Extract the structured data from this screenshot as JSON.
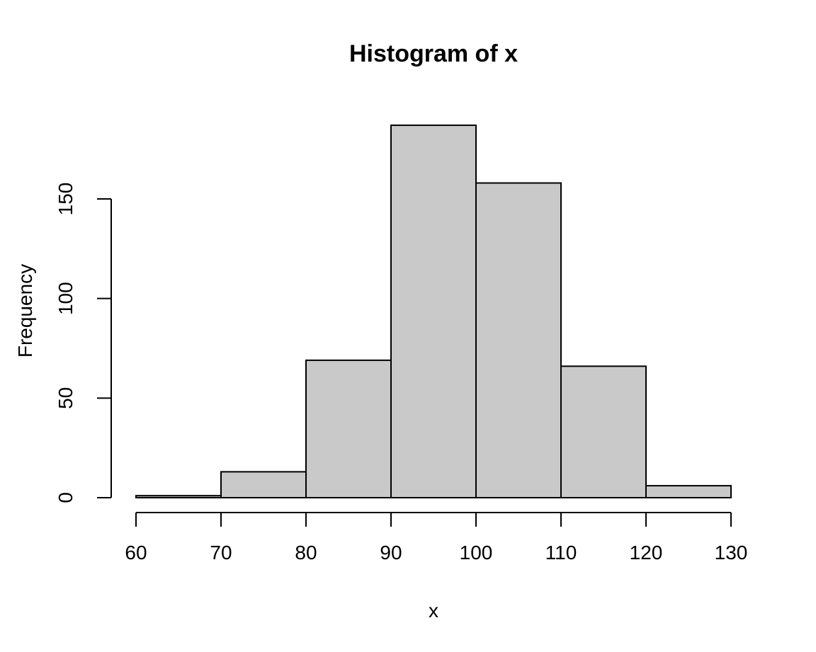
{
  "chart_data": {
    "type": "bar",
    "subtype": "histogram",
    "title": "Histogram of x",
    "xlabel": "x",
    "ylabel": "Frequency",
    "bin_edges": [
      60,
      70,
      80,
      90,
      100,
      110,
      120,
      130
    ],
    "counts": [
      1,
      13,
      69,
      187,
      158,
      66,
      6
    ],
    "x_ticks": [
      60,
      70,
      80,
      90,
      100,
      110,
      120,
      130
    ],
    "y_ticks": [
      0,
      50,
      100,
      150
    ],
    "xlim": [
      60,
      130
    ],
    "ylim": [
      0,
      187
    ],
    "grid": "off",
    "legend": "none",
    "bar_fill": "#c9c9c9",
    "bar_stroke": "#000000",
    "axis_color": "#000000",
    "background": "#ffffff"
  }
}
